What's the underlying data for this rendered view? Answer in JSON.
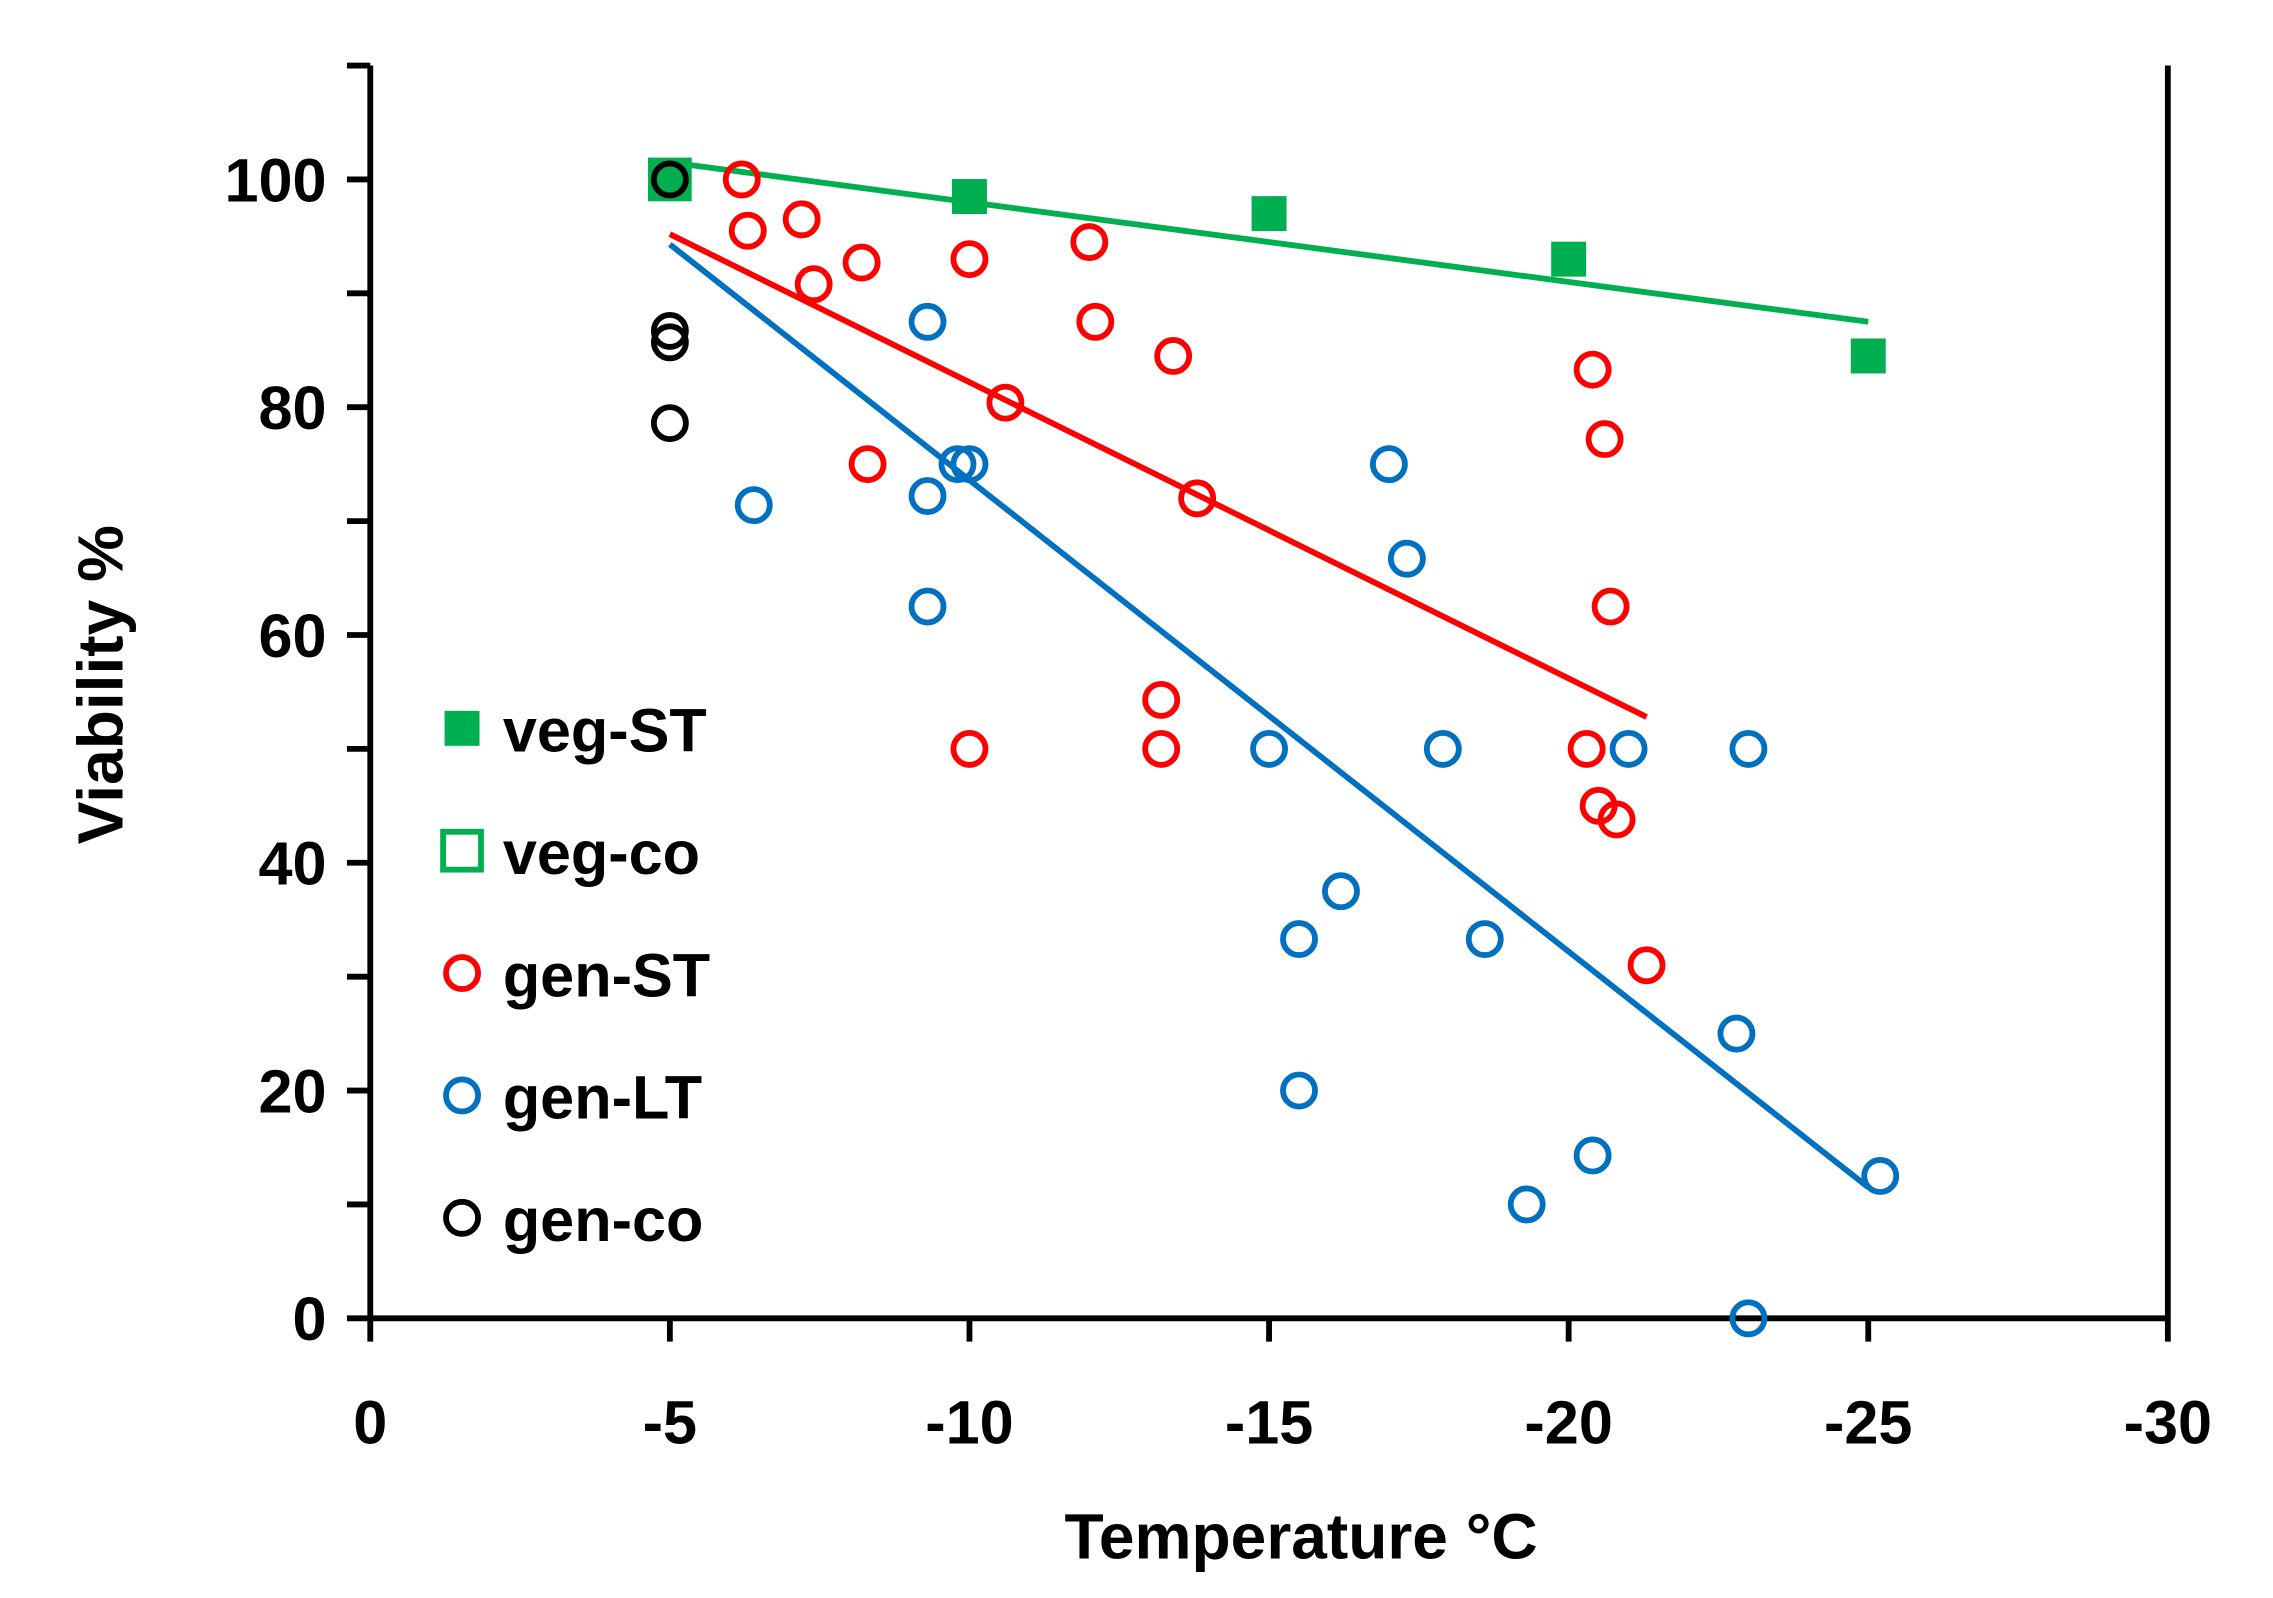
{
  "chart_data": {
    "type": "scatter",
    "title": "",
    "xlabel": "Temperature °C",
    "ylabel": "Viability %",
    "xlim": [
      0,
      -30
    ],
    "ylim": [
      0,
      110
    ],
    "xticks": [
      0,
      -5,
      -10,
      -15,
      -20,
      -25,
      -30
    ],
    "xtick_labels": [
      "0",
      "-5",
      "-10",
      "-15",
      "-20",
      "-25",
      "-30"
    ],
    "yticks": [
      0,
      20,
      40,
      60,
      80,
      100
    ],
    "ytick_labels": [
      "0",
      "20",
      "40",
      "60",
      "80",
      "100"
    ],
    "yminor": [
      10,
      30,
      50,
      70,
      90
    ],
    "grid": false,
    "legend_position": "left-center",
    "series": [
      {
        "name": "veg-ST",
        "marker": "filled-square",
        "color": "#00b050",
        "points": [
          [
            -5,
            100
          ],
          [
            -10,
            98.5
          ],
          [
            -15,
            97
          ],
          [
            -20,
            93
          ],
          [
            -25,
            84.5
          ]
        ],
        "trendline": [
          [
            -5,
            101.5
          ],
          [
            -25,
            87.5
          ]
        ]
      },
      {
        "name": "veg-co",
        "marker": "open-square",
        "color": "#00b050",
        "points": [
          [
            -5,
            100
          ]
        ]
      },
      {
        "name": "gen-ST",
        "marker": "open-circle",
        "color": "#ff0000",
        "points": [
          [
            -6.2,
            100
          ],
          [
            -6.3,
            95.5
          ],
          [
            -7.2,
            96.5
          ],
          [
            -7.4,
            90.8
          ],
          [
            -8.2,
            92.7
          ],
          [
            -8.3,
            75
          ],
          [
            -10,
            93
          ],
          [
            -10,
            50
          ],
          [
            -10.6,
            80.4
          ],
          [
            -12,
            94.5
          ],
          [
            -12.1,
            87.5
          ],
          [
            -13.2,
            54.3
          ],
          [
            -13.2,
            50
          ],
          [
            -13.4,
            84.5
          ],
          [
            -13.8,
            72
          ],
          [
            -20.3,
            50
          ],
          [
            -20.4,
            83.3
          ],
          [
            -20.5,
            45
          ],
          [
            -20.6,
            77.2
          ],
          [
            -20.7,
            62.5
          ],
          [
            -20.8,
            43.8
          ],
          [
            -21.3,
            31
          ]
        ],
        "trendline": [
          [
            -5,
            95.2
          ],
          [
            -21.3,
            52.8
          ]
        ]
      },
      {
        "name": "gen-LT",
        "marker": "open-circle",
        "color": "#0070c0",
        "points": [
          [
            -6.4,
            71.4
          ],
          [
            -9.3,
            87.5
          ],
          [
            -9.3,
            72.2
          ],
          [
            -9.3,
            62.5
          ],
          [
            -9.8,
            75
          ],
          [
            -10,
            75
          ],
          [
            -15,
            50
          ],
          [
            -15.5,
            33.3
          ],
          [
            -15.5,
            20
          ],
          [
            -16.2,
            37.5
          ],
          [
            -17,
            75
          ],
          [
            -17.3,
            66.7
          ],
          [
            -17.9,
            50
          ],
          [
            -18.6,
            33.3
          ],
          [
            -19.3,
            10
          ],
          [
            -20.4,
            14.3
          ],
          [
            -21,
            50
          ],
          [
            -22.8,
            25
          ],
          [
            -23,
            50
          ],
          [
            -23,
            0
          ],
          [
            -25.2,
            12.5
          ]
        ],
        "trendline": [
          [
            -5,
            94.3
          ],
          [
            -25,
            11.5
          ]
        ]
      },
      {
        "name": "gen-co",
        "marker": "open-circle",
        "color": "#000000",
        "points": [
          [
            -5,
            100
          ],
          [
            -5,
            86.7
          ],
          [
            -5,
            85.7
          ],
          [
            -5,
            78.6
          ]
        ]
      }
    ]
  }
}
